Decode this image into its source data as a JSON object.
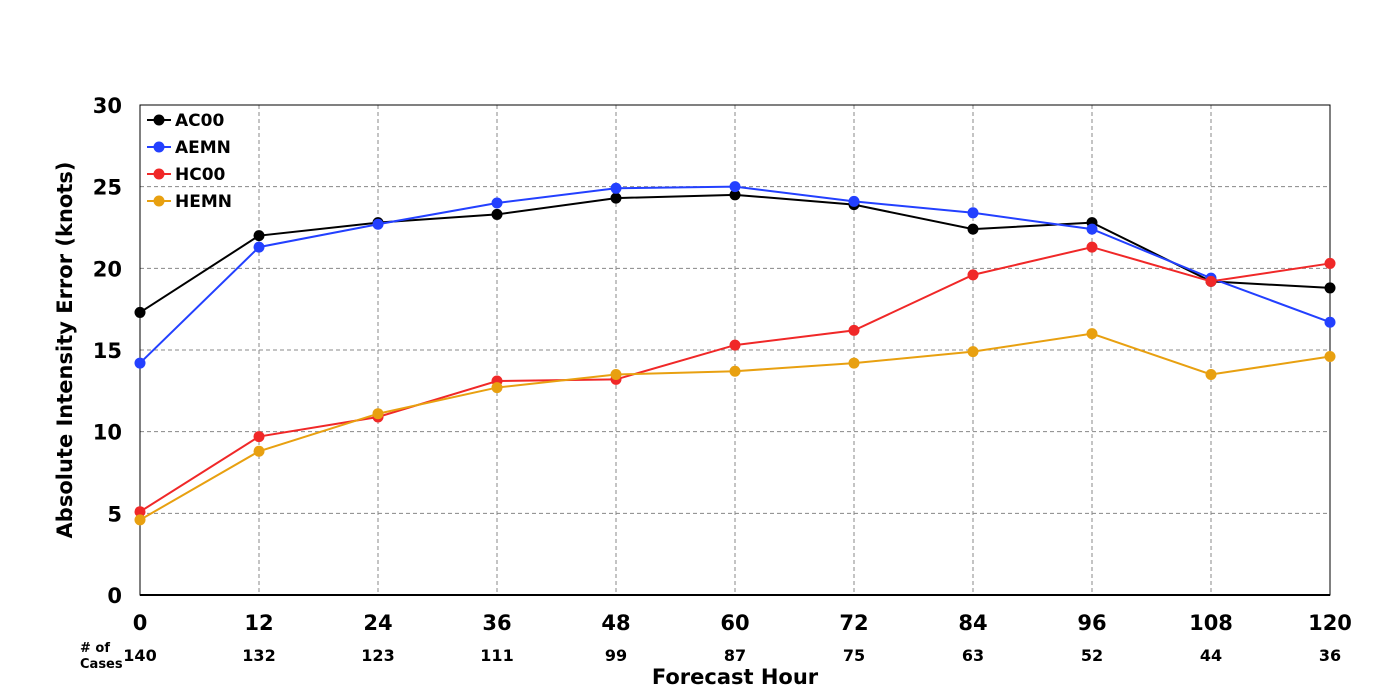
{
  "chart_data": {
    "type": "line",
    "xlabel": "Forecast Hour",
    "ylabel": "Absolute Intensity Error (knots)",
    "x": [
      0,
      12,
      24,
      36,
      48,
      60,
      72,
      84,
      96,
      108,
      120
    ],
    "xlim": [
      0,
      120
    ],
    "ylim": [
      0,
      30
    ],
    "yticks": [
      0,
      5,
      10,
      15,
      20,
      25,
      30
    ],
    "grid": true,
    "legend_position": "top-left",
    "cases_label": [
      "# of",
      "Cases"
    ],
    "cases": [
      140,
      132,
      123,
      111,
      99,
      87,
      75,
      63,
      52,
      44,
      36
    ],
    "series": [
      {
        "name": "AC00",
        "color": "#000000",
        "values": [
          17.3,
          22.0,
          22.8,
          23.3,
          24.3,
          24.5,
          23.9,
          22.4,
          22.8,
          19.2,
          18.8
        ]
      },
      {
        "name": "AEMN",
        "color": "#2340ff",
        "values": [
          14.2,
          21.3,
          22.7,
          24.0,
          24.9,
          25.0,
          24.1,
          23.4,
          22.4,
          19.4,
          16.7
        ]
      },
      {
        "name": "HC00",
        "color": "#f02828",
        "values": [
          5.1,
          9.7,
          10.9,
          13.1,
          13.2,
          15.3,
          16.2,
          19.6,
          21.3,
          19.2,
          20.3
        ]
      },
      {
        "name": "HEMN",
        "color": "#e8a010",
        "values": [
          4.6,
          8.8,
          11.1,
          12.7,
          13.5,
          13.7,
          14.2,
          14.9,
          16.0,
          13.5,
          14.6
        ]
      }
    ]
  }
}
